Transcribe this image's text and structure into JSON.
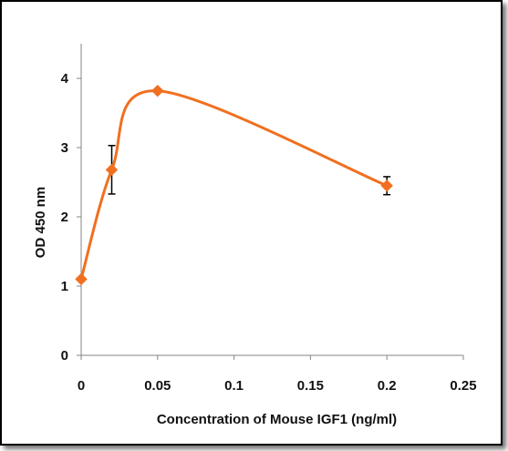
{
  "chart_data": {
    "type": "line",
    "xlabel": "Concentration of Mouse IGF1 (ng/ml)",
    "ylabel": "OD 450 nm",
    "xlim": [
      0,
      0.25
    ],
    "ylim": [
      0,
      4.5
    ],
    "x_ticks": [
      0,
      0.05,
      0.1,
      0.15,
      0.2,
      0.25
    ],
    "x_tick_labels": [
      "0",
      "0.05",
      "0.1",
      "0.15",
      "0.2",
      "0.25"
    ],
    "y_ticks": [
      0,
      1,
      2,
      3,
      4
    ],
    "y_tick_labels": [
      "0",
      "1",
      "2",
      "3",
      "4"
    ],
    "grid": false,
    "smooth": true,
    "series": [
      {
        "x": [
          0,
          0.02,
          0.05,
          0.2
        ],
        "y": [
          1.1,
          2.68,
          3.82,
          2.45
        ],
        "error": [
          0,
          0.35,
          0,
          0.13
        ],
        "color": "#f07020",
        "marker": "diamond"
      }
    ]
  }
}
